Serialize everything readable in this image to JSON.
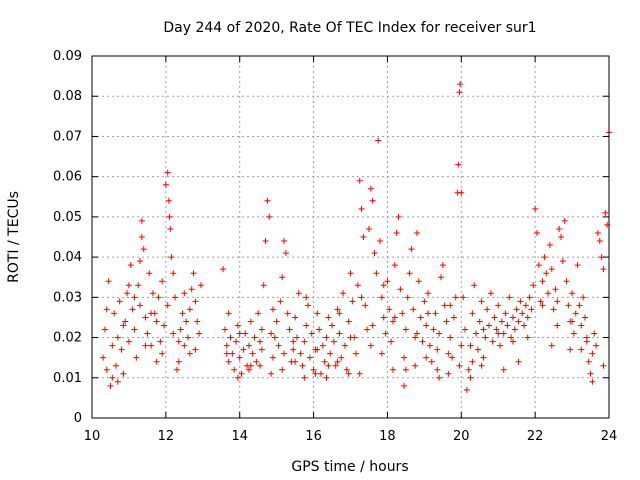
{
  "chart_data": {
    "type": "scatter",
    "title": "Day 244 of 2020, Rate Of TEC Index for receiver sur1",
    "xlabel": "GPS time / hours",
    "ylabel": "ROTI / TECUs",
    "xlim": [
      10,
      24
    ],
    "ylim": [
      0,
      0.09
    ],
    "xticks": [
      10,
      12,
      14,
      16,
      18,
      20,
      22,
      24
    ],
    "yticks": [
      0,
      0.01,
      0.02,
      0.03,
      0.04,
      0.05,
      0.06,
      0.07,
      0.08,
      0.09
    ],
    "xtick_labels": [
      "10",
      "12",
      "14",
      "16",
      "18",
      "20",
      "22",
      "24"
    ],
    "ytick_labels": [
      "0",
      "0.01",
      "0.02",
      "0.03",
      "0.04",
      "0.05",
      "0.06",
      "0.07",
      "0.08",
      "0.09"
    ],
    "grid": true,
    "marker": "+",
    "color": "#ff0000",
    "points": [
      [
        10.3,
        0.015
      ],
      [
        10.35,
        0.022
      ],
      [
        10.4,
        0.012
      ],
      [
        10.45,
        0.034
      ],
      [
        10.5,
        0.008
      ],
      [
        10.55,
        0.018
      ],
      [
        10.6,
        0.026
      ],
      [
        10.65,
        0.013
      ],
      [
        10.7,
        0.02
      ],
      [
        10.75,
        0.029
      ],
      [
        10.8,
        0.017
      ],
      [
        10.85,
        0.011
      ],
      [
        10.9,
        0.024
      ],
      [
        10.95,
        0.031
      ],
      [
        11.0,
        0.019
      ],
      [
        11.05,
        0.038
      ],
      [
        11.1,
        0.027
      ],
      [
        11.15,
        0.022
      ],
      [
        11.2,
        0.015
      ],
      [
        11.25,
        0.033
      ],
      [
        11.3,
        0.028
      ],
      [
        11.35,
        0.045
      ],
      [
        11.4,
        0.042
      ],
      [
        11.45,
        0.025
      ],
      [
        11.5,
        0.021
      ],
      [
        11.55,
        0.036
      ],
      [
        11.6,
        0.018
      ],
      [
        11.65,
        0.031
      ],
      [
        11.7,
        0.026
      ],
      [
        11.75,
        0.014
      ],
      [
        11.8,
        0.03
      ],
      [
        11.85,
        0.019
      ],
      [
        11.9,
        0.034
      ],
      [
        11.95,
        0.023
      ],
      [
        12.0,
        0.058
      ],
      [
        12.05,
        0.061
      ],
      [
        12.08,
        0.054
      ],
      [
        12.1,
        0.05
      ],
      [
        12.12,
        0.047
      ],
      [
        12.15,
        0.04
      ],
      [
        12.2,
        0.036
      ],
      [
        12.25,
        0.03
      ],
      [
        12.3,
        0.012
      ],
      [
        12.35,
        0.014
      ],
      [
        12.4,
        0.022
      ],
      [
        12.45,
        0.026
      ],
      [
        12.5,
        0.018
      ],
      [
        12.55,
        0.024
      ],
      [
        12.6,
        0.02
      ],
      [
        12.65,
        0.016
      ],
      [
        12.7,
        0.032
      ],
      [
        12.75,
        0.036
      ],
      [
        12.8,
        0.029
      ],
      [
        12.85,
        0.024
      ],
      [
        12.9,
        0.021
      ],
      [
        12.95,
        0.033
      ],
      [
        13.55,
        0.037
      ],
      [
        13.6,
        0.022
      ],
      [
        13.65,
        0.018
      ],
      [
        13.7,
        0.014
      ],
      [
        13.75,
        0.02
      ],
      [
        13.8,
        0.016
      ],
      [
        13.85,
        0.012
      ],
      [
        13.9,
        0.019
      ],
      [
        13.95,
        0.023
      ],
      [
        14.0,
        0.015
      ],
      [
        14.05,
        0.011
      ],
      [
        14.1,
        0.017
      ],
      [
        14.15,
        0.021
      ],
      [
        14.2,
        0.013
      ],
      [
        14.25,
        0.018
      ],
      [
        14.3,
        0.024
      ],
      [
        14.35,
        0.016
      ],
      [
        14.4,
        0.02
      ],
      [
        14.45,
        0.014
      ],
      [
        14.5,
        0.026
      ],
      [
        14.55,
        0.019
      ],
      [
        14.6,
        0.022
      ],
      [
        14.65,
        0.033
      ],
      [
        14.7,
        0.044
      ],
      [
        14.75,
        0.054
      ],
      [
        14.8,
        0.05
      ],
      [
        14.85,
        0.011
      ],
      [
        14.9,
        0.015
      ],
      [
        14.95,
        0.02
      ],
      [
        15.0,
        0.024
      ],
      [
        15.05,
        0.018
      ],
      [
        15.1,
        0.029
      ],
      [
        15.15,
        0.035
      ],
      [
        15.2,
        0.044
      ],
      [
        15.25,
        0.041
      ],
      [
        15.3,
        0.026
      ],
      [
        15.35,
        0.022
      ],
      [
        15.4,
        0.014
      ],
      [
        15.45,
        0.017
      ],
      [
        15.5,
        0.025
      ],
      [
        15.55,
        0.02
      ],
      [
        15.6,
        0.031
      ],
      [
        15.65,
        0.016
      ],
      [
        15.7,
        0.013
      ],
      [
        15.75,
        0.019
      ],
      [
        15.8,
        0.023
      ],
      [
        15.85,
        0.028
      ],
      [
        15.9,
        0.015
      ],
      [
        15.95,
        0.021
      ],
      [
        16.0,
        0.012
      ],
      [
        16.05,
        0.017
      ],
      [
        16.1,
        0.026
      ],
      [
        16.15,
        0.022
      ],
      [
        16.2,
        0.011
      ],
      [
        16.25,
        0.018
      ],
      [
        16.3,
        0.014
      ],
      [
        16.35,
        0.02
      ],
      [
        16.4,
        0.025
      ],
      [
        16.45,
        0.016
      ],
      [
        16.5,
        0.023
      ],
      [
        16.55,
        0.019
      ],
      [
        16.6,
        0.013
      ],
      [
        16.65,
        0.027
      ],
      [
        16.7,
        0.021
      ],
      [
        16.75,
        0.015
      ],
      [
        16.8,
        0.031
      ],
      [
        16.85,
        0.018
      ],
      [
        16.9,
        0.012
      ],
      [
        16.95,
        0.024
      ],
      [
        17.0,
        0.036
      ],
      [
        17.05,
        0.029
      ],
      [
        17.1,
        0.02
      ],
      [
        17.15,
        0.016
      ],
      [
        17.2,
        0.033
      ],
      [
        17.25,
        0.059
      ],
      [
        17.3,
        0.052
      ],
      [
        17.35,
        0.045
      ],
      [
        17.4,
        0.028
      ],
      [
        17.45,
        0.022
      ],
      [
        17.5,
        0.047
      ],
      [
        17.55,
        0.057
      ],
      [
        17.6,
        0.054
      ],
      [
        17.65,
        0.041
      ],
      [
        17.7,
        0.036
      ],
      [
        17.75,
        0.069
      ],
      [
        17.8,
        0.044
      ],
      [
        17.85,
        0.03
      ],
      [
        17.9,
        0.025
      ],
      [
        17.95,
        0.021
      ],
      [
        18.0,
        0.034
      ],
      [
        18.05,
        0.027
      ],
      [
        18.1,
        0.019
      ],
      [
        18.15,
        0.024
      ],
      [
        18.2,
        0.038
      ],
      [
        18.25,
        0.046
      ],
      [
        18.3,
        0.05
      ],
      [
        18.35,
        0.032
      ],
      [
        18.4,
        0.026
      ],
      [
        18.45,
        0.015
      ],
      [
        18.5,
        0.022
      ],
      [
        18.55,
        0.03
      ],
      [
        18.6,
        0.036
      ],
      [
        18.65,
        0.042
      ],
      [
        18.7,
        0.027
      ],
      [
        18.75,
        0.02
      ],
      [
        18.8,
        0.046
      ],
      [
        18.85,
        0.034
      ],
      [
        18.9,
        0.025
      ],
      [
        18.95,
        0.019
      ],
      [
        19.0,
        0.029
      ],
      [
        19.05,
        0.023
      ],
      [
        19.1,
        0.031
      ],
      [
        19.15,
        0.018
      ],
      [
        19.2,
        0.014
      ],
      [
        19.25,
        0.022
      ],
      [
        19.3,
        0.026
      ],
      [
        19.35,
        0.017
      ],
      [
        19.4,
        0.021
      ],
      [
        19.45,
        0.035
      ],
      [
        19.5,
        0.038
      ],
      [
        19.55,
        0.028
      ],
      [
        19.6,
        0.024
      ],
      [
        19.65,
        0.016
      ],
      [
        19.7,
        0.02
      ],
      [
        19.75,
        0.015
      ],
      [
        19.8,
        0.025
      ],
      [
        19.85,
        0.03
      ],
      [
        19.9,
        0.056
      ],
      [
        19.92,
        0.063
      ],
      [
        19.95,
        0.081
      ],
      [
        19.97,
        0.083
      ],
      [
        20.0,
        0.056
      ],
      [
        20.05,
        0.03
      ],
      [
        20.1,
        0.022
      ],
      [
        20.15,
        0.007
      ],
      [
        20.2,
        0.012
      ],
      [
        20.25,
        0.018
      ],
      [
        20.3,
        0.026
      ],
      [
        20.35,
        0.033
      ],
      [
        20.4,
        0.021
      ],
      [
        20.45,
        0.017
      ],
      [
        20.5,
        0.024
      ],
      [
        20.55,
        0.029
      ],
      [
        20.6,
        0.015
      ],
      [
        20.65,
        0.02
      ],
      [
        20.7,
        0.027
      ],
      [
        20.75,
        0.023
      ],
      [
        20.8,
        0.031
      ],
      [
        20.85,
        0.019
      ],
      [
        20.9,
        0.025
      ],
      [
        20.95,
        0.022
      ],
      [
        21.0,
        0.028
      ],
      [
        21.05,
        0.018
      ],
      [
        21.1,
        0.024
      ],
      [
        21.15,
        0.021
      ],
      [
        21.2,
        0.026
      ],
      [
        21.25,
        0.023
      ],
      [
        21.3,
        0.03
      ],
      [
        21.35,
        0.02
      ],
      [
        21.4,
        0.025
      ],
      [
        21.45,
        0.022
      ],
      [
        21.5,
        0.027
      ],
      [
        21.55,
        0.024
      ],
      [
        21.6,
        0.029
      ],
      [
        21.65,
        0.026
      ],
      [
        21.7,
        0.023
      ],
      [
        21.75,
        0.028
      ],
      [
        21.8,
        0.025
      ],
      [
        21.85,
        0.03
      ],
      [
        21.9,
        0.027
      ],
      [
        21.95,
        0.033
      ],
      [
        22.0,
        0.052
      ],
      [
        22.05,
        0.046
      ],
      [
        22.1,
        0.038
      ],
      [
        22.15,
        0.029
      ],
      [
        22.2,
        0.034
      ],
      [
        22.25,
        0.04
      ],
      [
        22.3,
        0.036
      ],
      [
        22.35,
        0.031
      ],
      [
        22.4,
        0.043
      ],
      [
        22.45,
        0.037
      ],
      [
        22.5,
        0.027
      ],
      [
        22.55,
        0.032
      ],
      [
        22.6,
        0.029
      ],
      [
        22.65,
        0.047
      ],
      [
        22.7,
        0.045
      ],
      [
        22.75,
        0.039
      ],
      [
        22.8,
        0.049
      ],
      [
        22.85,
        0.034
      ],
      [
        22.9,
        0.028
      ],
      [
        22.95,
        0.024
      ],
      [
        23.0,
        0.031
      ],
      [
        23.05,
        0.021
      ],
      [
        23.1,
        0.026
      ],
      [
        23.15,
        0.038
      ],
      [
        23.2,
        0.028
      ],
      [
        23.25,
        0.023
      ],
      [
        23.3,
        0.03
      ],
      [
        23.35,
        0.025
      ],
      [
        23.4,
        0.02
      ],
      [
        23.45,
        0.014
      ],
      [
        23.5,
        0.011
      ],
      [
        23.55,
        0.016
      ],
      [
        23.6,
        0.021
      ],
      [
        23.65,
        0.018
      ],
      [
        23.7,
        0.046
      ],
      [
        23.75,
        0.044
      ],
      [
        23.8,
        0.04
      ],
      [
        23.85,
        0.037
      ],
      [
        23.9,
        0.051
      ],
      [
        23.95,
        0.048
      ],
      [
        24.0,
        0.071
      ],
      [
        10.4,
        0.027
      ],
      [
        10.7,
        0.009
      ],
      [
        11.0,
        0.033
      ],
      [
        11.3,
        0.039
      ],
      [
        11.6,
        0.026
      ],
      [
        11.9,
        0.016
      ],
      [
        12.2,
        0.021
      ],
      [
        12.5,
        0.031
      ],
      [
        12.8,
        0.017
      ],
      [
        13.7,
        0.026
      ],
      [
        14.0,
        0.021
      ],
      [
        14.3,
        0.013
      ],
      [
        14.6,
        0.017
      ],
      [
        14.9,
        0.027
      ],
      [
        15.2,
        0.016
      ],
      [
        15.5,
        0.014
      ],
      [
        15.8,
        0.03
      ],
      [
        16.1,
        0.017
      ],
      [
        16.4,
        0.013
      ],
      [
        16.7,
        0.026
      ],
      [
        17.0,
        0.02
      ],
      [
        17.3,
        0.03
      ],
      [
        17.6,
        0.023
      ],
      [
        17.9,
        0.033
      ],
      [
        18.2,
        0.025
      ],
      [
        18.5,
        0.012
      ],
      [
        18.8,
        0.021
      ],
      [
        19.1,
        0.026
      ],
      [
        19.4,
        0.01
      ],
      [
        19.7,
        0.028
      ],
      [
        20.0,
        0.018
      ],
      [
        20.3,
        0.014
      ],
      [
        20.6,
        0.022
      ],
      [
        21.0,
        0.021
      ],
      [
        21.4,
        0.019
      ],
      [
        21.8,
        0.02
      ],
      [
        22.2,
        0.028
      ],
      [
        22.6,
        0.023
      ],
      [
        23.0,
        0.024
      ],
      [
        23.4,
        0.019
      ],
      [
        10.55,
        0.01
      ],
      [
        10.85,
        0.023
      ],
      [
        11.15,
        0.03
      ],
      [
        11.45,
        0.018
      ],
      [
        11.75,
        0.024
      ],
      [
        12.05,
        0.028
      ],
      [
        12.35,
        0.019
      ],
      [
        12.65,
        0.027
      ],
      [
        13.65,
        0.016
      ],
      [
        13.95,
        0.01
      ],
      [
        14.25,
        0.012
      ],
      [
        14.55,
        0.013
      ],
      [
        14.85,
        0.021
      ],
      [
        15.15,
        0.012
      ],
      [
        15.45,
        0.019
      ],
      [
        15.75,
        0.01
      ],
      [
        16.05,
        0.011
      ],
      [
        16.35,
        0.01
      ],
      [
        16.65,
        0.014
      ],
      [
        16.95,
        0.011
      ],
      [
        17.25,
        0.011
      ],
      [
        17.55,
        0.018
      ],
      [
        17.85,
        0.016
      ],
      [
        18.15,
        0.012
      ],
      [
        18.45,
        0.008
      ],
      [
        18.75,
        0.013
      ],
      [
        19.05,
        0.015
      ],
      [
        19.35,
        0.012
      ],
      [
        19.65,
        0.011
      ],
      [
        19.95,
        0.013
      ],
      [
        20.25,
        0.01
      ],
      [
        20.55,
        0.013
      ],
      [
        21.15,
        0.012
      ],
      [
        21.55,
        0.014
      ],
      [
        22.45,
        0.018
      ],
      [
        22.95,
        0.017
      ],
      [
        23.25,
        0.017
      ],
      [
        23.55,
        0.009
      ],
      [
        23.85,
        0.013
      ],
      [
        11.35,
        0.049
      ]
    ]
  }
}
